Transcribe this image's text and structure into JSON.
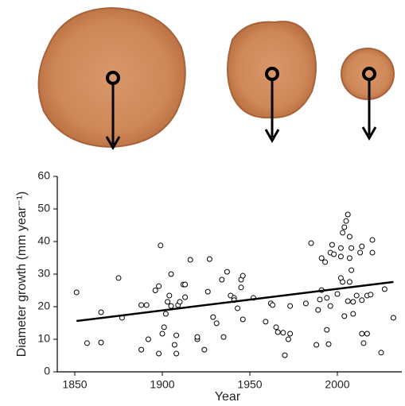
{
  "chart_data": {
    "type": "scatter",
    "x_label": "Year",
    "y_label": "Diameter growth (mm year⁻¹)",
    "xlim": [
      1840,
      2035
    ],
    "xticks": [
      1850,
      1900,
      1950,
      2000
    ],
    "ylim": [
      0,
      60
    ],
    "yticks": [
      0,
      10,
      20,
      30,
      40,
      50,
      60
    ],
    "series": [
      {
        "type": "scatter",
        "color": "#000000",
        "x": [
          1851,
          1857,
          1865,
          1865,
          1875,
          1877,
          1888,
          1888,
          1891,
          1892,
          1896,
          1898,
          1899,
          1898,
          1900,
          1901,
          1902,
          1903,
          1904,
          1905,
          1905,
          1907,
          1908,
          1908,
          1909,
          1910,
          1912,
          1913,
          1913,
          1916,
          1920,
          1920,
          1924,
          1926,
          1927,
          1929,
          1931,
          1934,
          1935,
          1937,
          1939,
          1941,
          1941,
          1943,
          1945,
          1946,
          1945,
          1946,
          1952,
          1959,
          1962,
          1963,
          1965,
          1966,
          1969,
          1970,
          1972,
          1973,
          1973,
          1982,
          1985,
          1988,
          1989,
          1990,
          1991,
          1991,
          1993,
          1994,
          1994,
          1995,
          1996,
          1996,
          1997,
          1998,
          2000,
          2002,
          2002,
          2002,
          2003,
          2003,
          2004,
          2004,
          2005,
          2006,
          2006,
          2007,
          2007,
          2007,
          2008,
          2008,
          2009,
          2009,
          2011,
          2013,
          2014,
          2014,
          2014,
          2015,
          2017,
          2017,
          2019,
          2020,
          2020,
          2025,
          2027,
          2032
        ],
        "values": [
          24.4,
          8.8,
          18.3,
          9,
          28.8,
          16.6,
          6.8,
          20.5,
          20.5,
          10,
          25,
          26.3,
          38.8,
          5.6,
          11.7,
          13.7,
          17.8,
          21.5,
          23.4,
          30,
          20.2,
          8.3,
          5.6,
          11.2,
          20.5,
          21.5,
          26.8,
          26.8,
          22.9,
          34.4,
          10,
          10.7,
          6.8,
          24.6,
          34.6,
          16.8,
          14.9,
          28.3,
          10.7,
          30.7,
          23.4,
          22.7,
          22,
          19.5,
          28.3,
          29.5,
          25.9,
          16.1,
          22.7,
          15.4,
          21,
          20.5,
          13.7,
          12.2,
          12,
          5.1,
          10,
          11.7,
          20.2,
          21,
          39.5,
          8.3,
          19,
          22.2,
          25.1,
          34.9,
          33.7,
          22.7,
          12.9,
          8.5,
          36.6,
          20.2,
          39,
          36.1,
          23.9,
          28.8,
          35.4,
          38,
          27.6,
          42.7,
          44.4,
          17.1,
          46.3,
          48.3,
          21.7,
          41.5,
          34.9,
          27.6,
          31.2,
          38,
          17.8,
          21.5,
          23.4,
          36.6,
          38.5,
          11.7,
          22,
          8.8,
          11.7,
          23.4,
          23.7,
          40.5,
          36.6,
          5.9,
          25.4,
          16.6
        ]
      },
      {
        "type": "line",
        "color": "#000000",
        "x": [
          1851,
          2032
        ],
        "values": [
          15.6,
          27.6
        ]
      }
    ]
  }
}
